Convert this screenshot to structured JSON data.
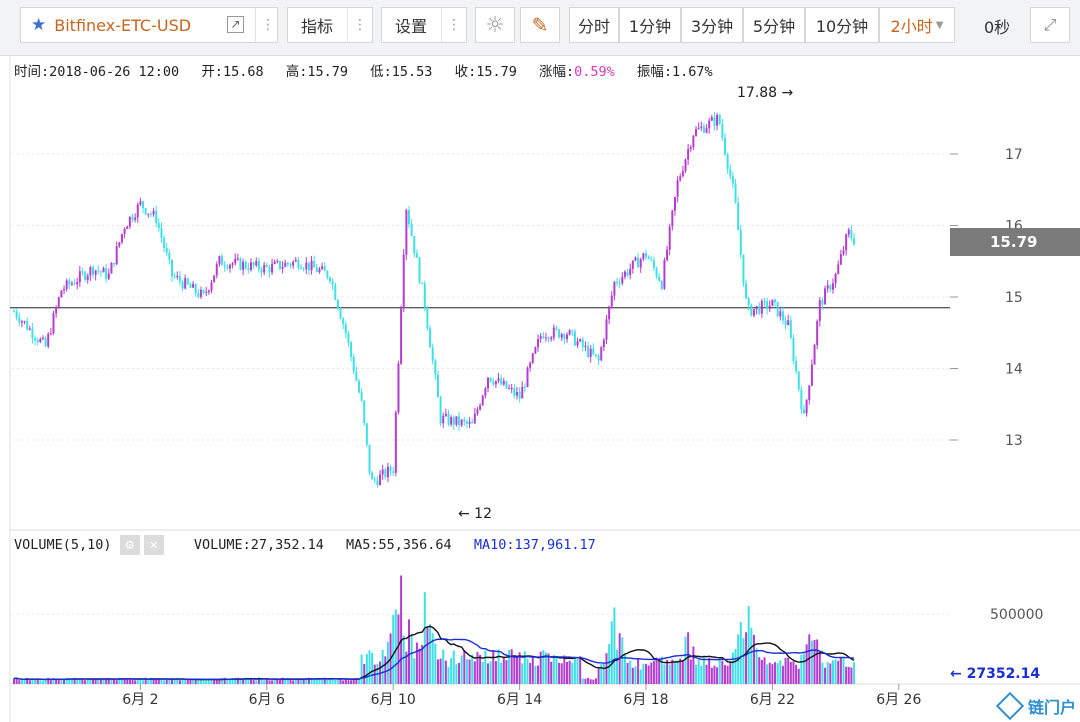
{
  "toolbar": {
    "symbol": "Bitfinex-ETC-USD",
    "indicators": "指标",
    "settings": "设置",
    "intervals": [
      "分时",
      "1分钟",
      "3分钟",
      "5分钟",
      "10分钟"
    ],
    "selected_interval": "2小时",
    "refresh": "0秒"
  },
  "info": {
    "time": "时间:2018-06-26 12:00",
    "open": "开:15.68",
    "high": "高:15.79",
    "low": "低:15.53",
    "close": "收:15.79",
    "change_label": "涨幅:",
    "change_value": "0.59%",
    "amp": "振幅:1.67%"
  },
  "volume_info": {
    "label": "VOLUME(5,10)",
    "volume": "VOLUME:27,352.14",
    "ma5": "MA5:55,356.64",
    "ma10": "MA10:137,961.17"
  },
  "annotations": {
    "high": "17.88 →",
    "low": "← 12",
    "current_price": "15.79",
    "last_volume": "← 27352.14"
  },
  "logo_text": "链门户",
  "colors": {
    "up": "#b43cd0",
    "down": "#3ee0e8",
    "ma5": "#111111",
    "ma10": "#1a2fd4",
    "positive": "#d936c0"
  },
  "chart_data": [
    {
      "type": "candlestick",
      "title": "Bitfinex-ETC-USD 2小时",
      "x_ticks": [
        "6月 2",
        "6月 6",
        "6月 10",
        "6月 14",
        "6月 18",
        "6月 22",
        "6月 26"
      ],
      "y_ticks": [
        13,
        14,
        15,
        16,
        17
      ],
      "ylim": [
        12,
        17.88
      ],
      "reference_line": 14.85,
      "current_price": 15.79,
      "range_high": 17.88,
      "range_low": 12,
      "path_points": [
        {
          "day": 0,
          "price": 14.8
        },
        {
          "day": 1,
          "price": 14.3
        },
        {
          "day": 1.5,
          "price": 15.1
        },
        {
          "day": 2.5,
          "price": 15.4
        },
        {
          "day": 3,
          "price": 15.3
        },
        {
          "day": 3.5,
          "price": 16.0
        },
        {
          "day": 4,
          "price": 16.3
        },
        {
          "day": 4.5,
          "price": 16.1
        },
        {
          "day": 5,
          "price": 15.3
        },
        {
          "day": 6,
          "price": 15.0
        },
        {
          "day": 6.5,
          "price": 15.5
        },
        {
          "day": 8,
          "price": 15.4
        },
        {
          "day": 9,
          "price": 15.5
        },
        {
          "day": 10,
          "price": 15.3
        },
        {
          "day": 10.5,
          "price": 14.5
        },
        {
          "day": 11,
          "price": 13.5
        },
        {
          "day": 11.3,
          "price": 12.4
        },
        {
          "day": 12,
          "price": 12.6
        },
        {
          "day": 12.4,
          "price": 16.3
        },
        {
          "day": 13,
          "price": 14.9
        },
        {
          "day": 13.5,
          "price": 13.3
        },
        {
          "day": 14.5,
          "price": 13.2
        },
        {
          "day": 15,
          "price": 13.9
        },
        {
          "day": 16,
          "price": 13.6
        },
        {
          "day": 16.7,
          "price": 14.5
        },
        {
          "day": 17.5,
          "price": 14.5
        },
        {
          "day": 18.5,
          "price": 14.1
        },
        {
          "day": 19,
          "price": 15.2
        },
        {
          "day": 20,
          "price": 15.6
        },
        {
          "day": 20.5,
          "price": 15.2
        },
        {
          "day": 21,
          "price": 16.6
        },
        {
          "day": 21.5,
          "price": 17.3
        },
        {
          "day": 22.3,
          "price": 17.5
        },
        {
          "day": 22.8,
          "price": 16.4
        },
        {
          "day": 23.2,
          "price": 14.8
        },
        {
          "day": 24,
          "price": 14.9
        },
        {
          "day": 24.5,
          "price": 14.6
        },
        {
          "day": 25,
          "price": 13.3
        },
        {
          "day": 25.5,
          "price": 14.9
        },
        {
          "day": 26,
          "price": 15.3
        },
        {
          "day": 26.4,
          "price": 15.9
        },
        {
          "day": 26.6,
          "price": 15.79
        }
      ]
    },
    {
      "type": "bar",
      "title": "VOLUME(5,10)",
      "y_ticks": [
        500000
      ],
      "last_value": 27352.14,
      "ma5_last": 55356.64,
      "ma10_last": 137961.17,
      "peaks": [
        {
          "day": 12.2,
          "value": 850000
        },
        {
          "day": 13,
          "value": 720000
        },
        {
          "day": 19,
          "value": 560000
        },
        {
          "day": 21.3,
          "value": 450000
        },
        {
          "day": 23.2,
          "value": 700000
        },
        {
          "day": 25.3,
          "value": 520000
        }
      ]
    }
  ]
}
